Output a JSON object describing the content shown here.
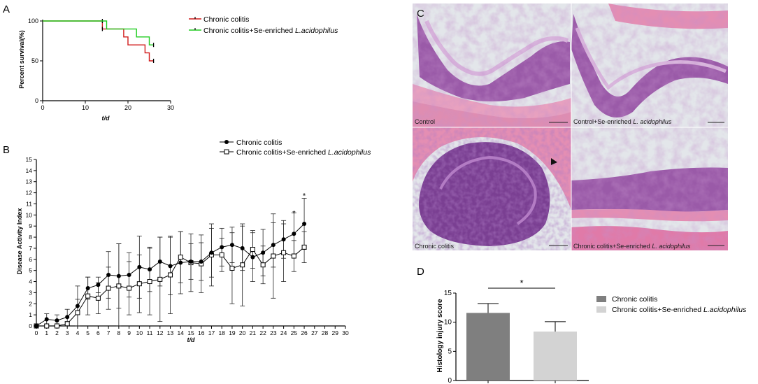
{
  "panels": {
    "a": "A",
    "b": "B",
    "c": "C",
    "d": "D"
  },
  "colors": {
    "colitis_survival": "#d11a1a",
    "treated_survival": "#1fcc1f",
    "bar_colitis": "#7f7f7f",
    "bar_treated": "#d3d3d3",
    "tissue_pink": "#e596b6",
    "tissue_purple": "#8a4f9c",
    "slide_background": "#e2e6ea"
  },
  "micrographs": {
    "labels": [
      "Control",
      "Control+Se-enriched L. acidophilus",
      "Chronic colitis",
      "Chronic colitis+Se-enriched L. acidophilus"
    ]
  },
  "chart_data": [
    {
      "panel": "A",
      "type": "line",
      "step": true,
      "xlabel": "t/d",
      "ylabel": "Percent survival(%)",
      "xlim": [
        0,
        30
      ],
      "ylim": [
        0,
        100
      ],
      "xticks": [
        "0",
        "10",
        "20",
        "30"
      ],
      "yticks": [
        "0",
        "50",
        "100"
      ],
      "legend_position": "top-right",
      "series": [
        {
          "name": "Chronic colitis",
          "x": [
            0,
            14,
            14,
            19,
            19,
            20,
            20,
            24,
            24,
            25,
            25,
            26
          ],
          "y": [
            100,
            100,
            90,
            90,
            80,
            80,
            70,
            70,
            60,
            60,
            50,
            50
          ],
          "censored": [
            [
              14,
              100
            ],
            [
              26,
              50
            ]
          ]
        },
        {
          "name": "Chronic colitis+Se-enriched L.acidophilus",
          "x": [
            0,
            15,
            15,
            22,
            22,
            25,
            25,
            26
          ],
          "y": [
            100,
            100,
            90,
            90,
            80,
            80,
            70,
            70
          ],
          "censored": [
            [
              14,
              90
            ],
            [
              26,
              70
            ]
          ]
        }
      ]
    },
    {
      "panel": "B",
      "type": "line",
      "xlabel": "t/d",
      "ylabel": "Disease Activity Index",
      "xlim": [
        0,
        30
      ],
      "ylim": [
        0,
        15
      ],
      "xticks": [
        "0",
        "1",
        "2",
        "3",
        "4",
        "5",
        "6",
        "7",
        "8",
        "9",
        "10",
        "11",
        "12",
        "13",
        "14",
        "15",
        "16",
        "17",
        "18",
        "19",
        "20",
        "21",
        "22",
        "23",
        "24",
        "25",
        "26",
        "27",
        "28",
        "29",
        "30"
      ],
      "yticks": [
        "0",
        "1",
        "2",
        "3",
        "4",
        "5",
        "6",
        "7",
        "8",
        "9",
        "10",
        "11",
        "12",
        "13",
        "14",
        "15"
      ],
      "legend_position": "top-right",
      "annotations": [
        {
          "text": "*",
          "x": 25,
          "y": 10.1
        },
        {
          "text": "*",
          "x": 26,
          "y": 11.7
        }
      ],
      "series": [
        {
          "name": "Chronic colitis",
          "marker": "filled-circle",
          "x": [
            0,
            1,
            2,
            3,
            4,
            5,
            6,
            7,
            8,
            9,
            10,
            11,
            12,
            13,
            14,
            15,
            16,
            17,
            18,
            19,
            20,
            21,
            22,
            23,
            24,
            25,
            26
          ],
          "y": [
            0,
            0.6,
            0.5,
            0.8,
            1.8,
            3.4,
            3.7,
            4.6,
            4.5,
            4.6,
            5.3,
            5.1,
            5.8,
            5.4,
            5.7,
            5.8,
            5.8,
            6.6,
            7.1,
            7.3,
            7.0,
            6.2,
            6.6,
            7.3,
            7.8,
            8.3,
            9.2
          ],
          "error": [
            0,
            0.5,
            0.5,
            0.7,
            1.8,
            1.0,
            0.7,
            2.1,
            2.9,
            2.0,
            2.8,
            2.0,
            2.2,
            2.6,
            2.8,
            1.6,
            1.7,
            2.2,
            1.7,
            1.6,
            2.0,
            2.2,
            2.1,
            2.0,
            1.7,
            1.9,
            2.3
          ]
        },
        {
          "name": "Chronic colitis+Se-enriched L.acidophilus",
          "marker": "open-square",
          "x": [
            0,
            1,
            2,
            3,
            4,
            5,
            6,
            7,
            8,
            9,
            10,
            11,
            12,
            13,
            14,
            15,
            16,
            17,
            18,
            19,
            20,
            21,
            22,
            23,
            24,
            25,
            26
          ],
          "y": [
            0,
            0,
            0,
            0.2,
            1.2,
            2.7,
            2.5,
            3.4,
            3.6,
            3.4,
            3.8,
            4.0,
            4.2,
            4.6,
            6.2,
            5.7,
            5.6,
            6.4,
            6.4,
            5.2,
            5.5,
            6.9,
            5.5,
            6.3,
            6.6,
            6.3,
            7.1
          ],
          "error": [
            0,
            0,
            0,
            0.2,
            1.2,
            1.7,
            1.4,
            1.9,
            3.8,
            2.4,
            2.6,
            3.0,
            3.8,
            3.5,
            2.3,
            2.6,
            2.6,
            2.8,
            1.5,
            3.2,
            3.7,
            1.7,
            1.7,
            3.8,
            2.6,
            1.4,
            1.4
          ]
        }
      ]
    },
    {
      "panel": "D",
      "type": "bar",
      "categories": [
        "Chronic colitis",
        "Chronic colitis+Se-enriched L.acidophilus"
      ],
      "values": [
        11.6,
        8.4
      ],
      "error": [
        1.6,
        1.7
      ],
      "ylabel": "Histology injury score",
      "ylim": [
        0,
        15
      ],
      "yticks": [
        "0",
        "5",
        "10",
        "15"
      ],
      "legend_position": "right",
      "significance": "*"
    }
  ]
}
